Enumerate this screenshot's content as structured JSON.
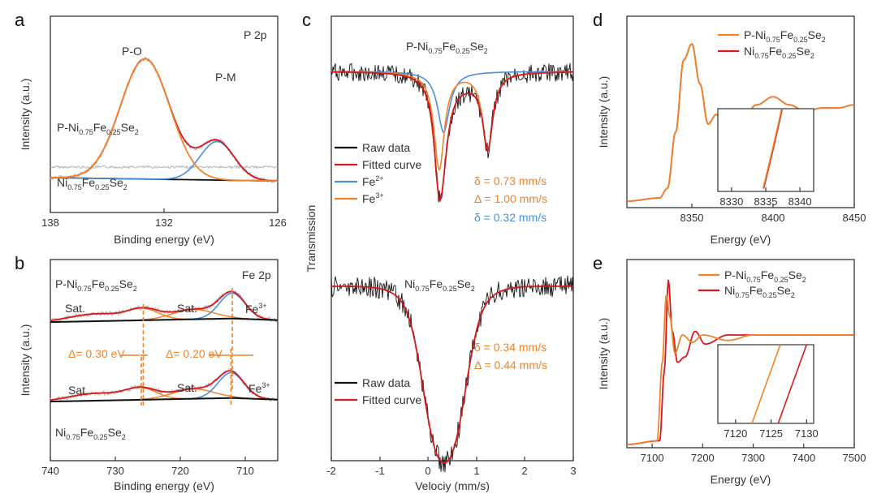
{
  "colors": {
    "black": "#111111",
    "red": "#d7191c",
    "blue": "#4a90d9",
    "orange": "#f0822a",
    "gray": "#b4b4b4",
    "axis": "#333333"
  },
  "chart_data": [
    {
      "id": "a",
      "type": "line",
      "label": "a",
      "title": "P 2p",
      "xlabel": "Binding energy (eV)",
      "ylabel": "Intensity (a.u.)",
      "xlim": [
        138,
        126
      ],
      "xticks": [
        "138",
        "132",
        "126"
      ],
      "annotations": {
        "p_o": "P-O",
        "p_m": "P-M",
        "sample1": {
          "pre": "P-Ni",
          "s1": "0.75",
          "mid": "Fe",
          "s2": "0.25",
          "post": "Se",
          "s3": "2"
        },
        "sample2": {
          "pre": "Ni",
          "s1": "0.75",
          "mid": "Fe",
          "s2": "0.25",
          "post": "Se",
          "s3": "2"
        }
      },
      "series": [
        {
          "kind": "baseline",
          "x": [
            138,
            135,
            132,
            129,
            126
          ],
          "y": [
            0.22,
            0.21,
            0.2,
            0.19,
            0.185
          ]
        },
        {
          "kind": "peak-p-o",
          "center": 133.0,
          "height": 0.78,
          "width": 1.3
        },
        {
          "kind": "peak-p-m",
          "center": 129.2,
          "height": 0.25,
          "width": 0.9
        }
      ]
    },
    {
      "id": "b",
      "type": "line",
      "label": "b",
      "title": "Fe 2p",
      "xlabel": "Binding energy (eV)",
      "ylabel": "Intensity (a.u.)",
      "xlim": [
        740,
        705
      ],
      "xticks": [
        "740",
        "730",
        "720",
        "710"
      ],
      "annotations": {
        "sat": "Sat.",
        "fe3": "Fe",
        "fe3_sup": "3+",
        "delta1": "Δ= 0.30 eV",
        "delta2": "Δ= 0.20 eV",
        "sample1": {
          "pre": "P-Ni",
          "s1": "0.75",
          "mid": "Fe",
          "s2": "0.25",
          "post": "Se",
          "s3": "2"
        },
        "sample2": {
          "pre": "Ni",
          "s1": "0.75",
          "mid": "Fe",
          "s2": "0.25",
          "post": "Se",
          "s3": "2"
        }
      },
      "series": [
        {
          "name": "P-Ni0.75Fe0.25Se2",
          "peaks": [
            725.7,
            712.0
          ]
        },
        {
          "name": "Ni0.75Fe0.25Se2",
          "peaks": [
            726.0,
            712.2
          ]
        }
      ]
    },
    {
      "id": "c",
      "type": "line",
      "label": "c",
      "xlabel": "Velociy (mm/s)",
      "ylabel": "Transmission",
      "xlim": [
        -2,
        3
      ],
      "xticks": [
        "-2",
        "-1",
        "0",
        "1",
        "2",
        "3"
      ],
      "legend1": [
        {
          "name": "Raw data",
          "color": "#111111"
        },
        {
          "name": "Fitted curve",
          "color": "#d7191c"
        },
        {
          "name": "Fe",
          "sup": "2+",
          "color": "#4a90d9"
        },
        {
          "name": "Fe",
          "sup": "3+",
          "color": "#f0822a"
        }
      ],
      "legend2": [
        {
          "name": "Raw data",
          "color": "#111111"
        },
        {
          "name": "Fitted curve",
          "color": "#d7191c"
        }
      ],
      "params_top": [
        "δ = 0.73 mm/s",
        "Δ = 1.00 mm/s",
        "δ = 0.32 mm/s"
      ],
      "params_bottom": [
        "δ = 0.34 mm/s",
        "Δ = 0.44 mm/s"
      ],
      "sample1": {
        "pre": "P-Ni",
        "s1": "0.75",
        "mid": "Fe",
        "s2": "0.25",
        "post": "Se",
        "s3": "2"
      },
      "sample2": {
        "pre": "Ni",
        "s1": "0.75",
        "mid": "Fe",
        "s2": "0.25",
        "post": "Se",
        "s3": "2"
      },
      "top_doublet": {
        "fe3_centers": [
          0.23,
          1.23
        ],
        "fe2_center": 0.32
      },
      "bottom_doublet": {
        "centers": [
          0.12,
          0.56
        ]
      }
    },
    {
      "id": "d",
      "type": "line",
      "label": "d",
      "xlabel": "Energy (eV)",
      "ylabel": "Intensity (a.u.)",
      "xlim": [
        8310,
        8450
      ],
      "xticks": [
        "8350",
        "8400",
        "8450"
      ],
      "inset_xticks": [
        "8330",
        "8335",
        "8340"
      ],
      "legend": [
        {
          "pre": "P-Ni",
          "s1": "0.75",
          "mid": "Fe",
          "s2": "0.25",
          "post": "Se",
          "s3": "2",
          "color": "#f0822a"
        },
        {
          "pre": "Ni",
          "s1": "0.75",
          "mid": "Fe",
          "s2": "0.25",
          "post": "Se",
          "s3": "2",
          "color": "#d7191c"
        }
      ],
      "x": [
        8310,
        8330,
        8335,
        8340,
        8345,
        8350,
        8355,
        8360,
        8365,
        8370,
        8375,
        8380,
        8390,
        8400,
        8410,
        8420,
        8430,
        8440,
        8450
      ],
      "y": [
        0.02,
        0.04,
        0.1,
        0.45,
        0.9,
        1.0,
        0.75,
        0.5,
        0.56,
        0.5,
        0.47,
        0.52,
        0.62,
        0.67,
        0.62,
        0.58,
        0.6,
        0.6,
        0.62
      ]
    },
    {
      "id": "e",
      "type": "line",
      "label": "e",
      "xlabel": "Energy (eV)",
      "ylabel": "Intensity (a.u.)",
      "xlim": [
        7050,
        7500
      ],
      "xticks": [
        "7100",
        "7200",
        "7300",
        "7400",
        "7500"
      ],
      "inset_xticks": [
        "7120",
        "7125",
        "7130"
      ],
      "legend": [
        {
          "pre": "P-Ni",
          "s1": "0.75",
          "mid": "Fe",
          "s2": "0.25",
          "post": "Se",
          "s3": "2",
          "color": "#f0822a"
        },
        {
          "pre": "Ni",
          "s1": "0.75",
          "mid": "Fe",
          "s2": "0.25",
          "post": "Se",
          "s3": "2",
          "color": "#d7191c"
        }
      ],
      "series": [
        {
          "name": "P-Ni0.75Fe0.25Se2",
          "x": [
            7050,
            7110,
            7120,
            7128,
            7135,
            7145,
            7160,
            7180,
            7200,
            7250,
            7300,
            7400,
            7500
          ],
          "y": [
            0.0,
            0.02,
            0.45,
            0.82,
            0.7,
            0.5,
            0.6,
            0.56,
            0.6,
            0.57,
            0.6,
            0.6,
            0.6
          ]
        },
        {
          "name": "Ni0.75Fe0.25Se2",
          "x": [
            7050,
            7115,
            7124,
            7132,
            7140,
            7150,
            7165,
            7185,
            7205,
            7250,
            7300,
            7400,
            7500
          ],
          "y": [
            0.0,
            0.02,
            0.4,
            0.9,
            0.62,
            0.45,
            0.48,
            0.62,
            0.55,
            0.6,
            0.6,
            0.6,
            0.6
          ]
        }
      ]
    }
  ]
}
